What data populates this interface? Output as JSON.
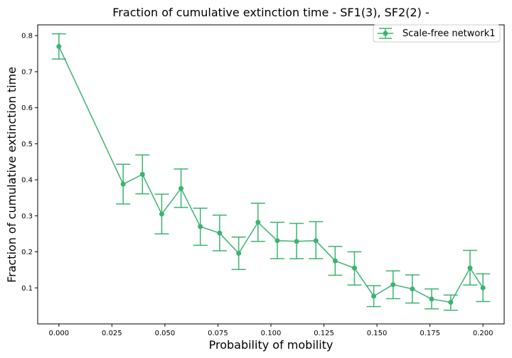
{
  "chart_data": {
    "type": "line",
    "title": "Fraction of cumulative extinction time - SF1(3), SF2(2) -",
    "xlabel": "Probability of mobility",
    "ylabel": "Fraction of cumulative extinction time",
    "xlim": [
      -0.01,
      0.21
    ],
    "ylim": [
      0.0,
      0.83
    ],
    "xticks": [
      0.0,
      0.025,
      0.05,
      0.075,
      0.1,
      0.125,
      0.15,
      0.175,
      0.2
    ],
    "xtick_labels": [
      "0.000",
      "0.025",
      "0.050",
      "0.075",
      "0.100",
      "0.125",
      "0.150",
      "0.175",
      "0.200"
    ],
    "yticks": [
      0.1,
      0.2,
      0.3,
      0.4,
      0.5,
      0.6,
      0.7,
      0.8
    ],
    "ytick_labels": [
      "0.1",
      "0.2",
      "0.3",
      "0.4",
      "0.5",
      "0.6",
      "0.7",
      "0.8"
    ],
    "grid": false,
    "legend_position": "top-right",
    "series": [
      {
        "name": "Scale-free network1",
        "color": "#3cb371",
        "marker": "circle",
        "error_bars": true,
        "x": [
          0.0,
          0.0303,
          0.0394,
          0.0485,
          0.0576,
          0.0667,
          0.0758,
          0.0848,
          0.0939,
          0.103,
          0.1121,
          0.1212,
          0.1303,
          0.1394,
          0.1485,
          0.1576,
          0.1667,
          0.1758,
          0.1848,
          0.1939,
          0.2
        ],
        "y": [
          0.77,
          0.388,
          0.415,
          0.305,
          0.376,
          0.27,
          0.252,
          0.196,
          0.282,
          0.231,
          0.229,
          0.231,
          0.175,
          0.155,
          0.077,
          0.109,
          0.097,
          0.069,
          0.06,
          0.155,
          0.1
        ],
        "yerr_low": [
          0.735,
          0.333,
          0.361,
          0.25,
          0.323,
          0.218,
          0.203,
          0.151,
          0.229,
          0.181,
          0.181,
          0.181,
          0.135,
          0.108,
          0.048,
          0.07,
          0.058,
          0.042,
          0.038,
          0.108,
          0.062
        ],
        "yerr_high": [
          0.805,
          0.443,
          0.469,
          0.36,
          0.43,
          0.321,
          0.302,
          0.241,
          0.335,
          0.282,
          0.279,
          0.284,
          0.215,
          0.2,
          0.106,
          0.147,
          0.136,
          0.097,
          0.08,
          0.204,
          0.139
        ]
      }
    ]
  }
}
